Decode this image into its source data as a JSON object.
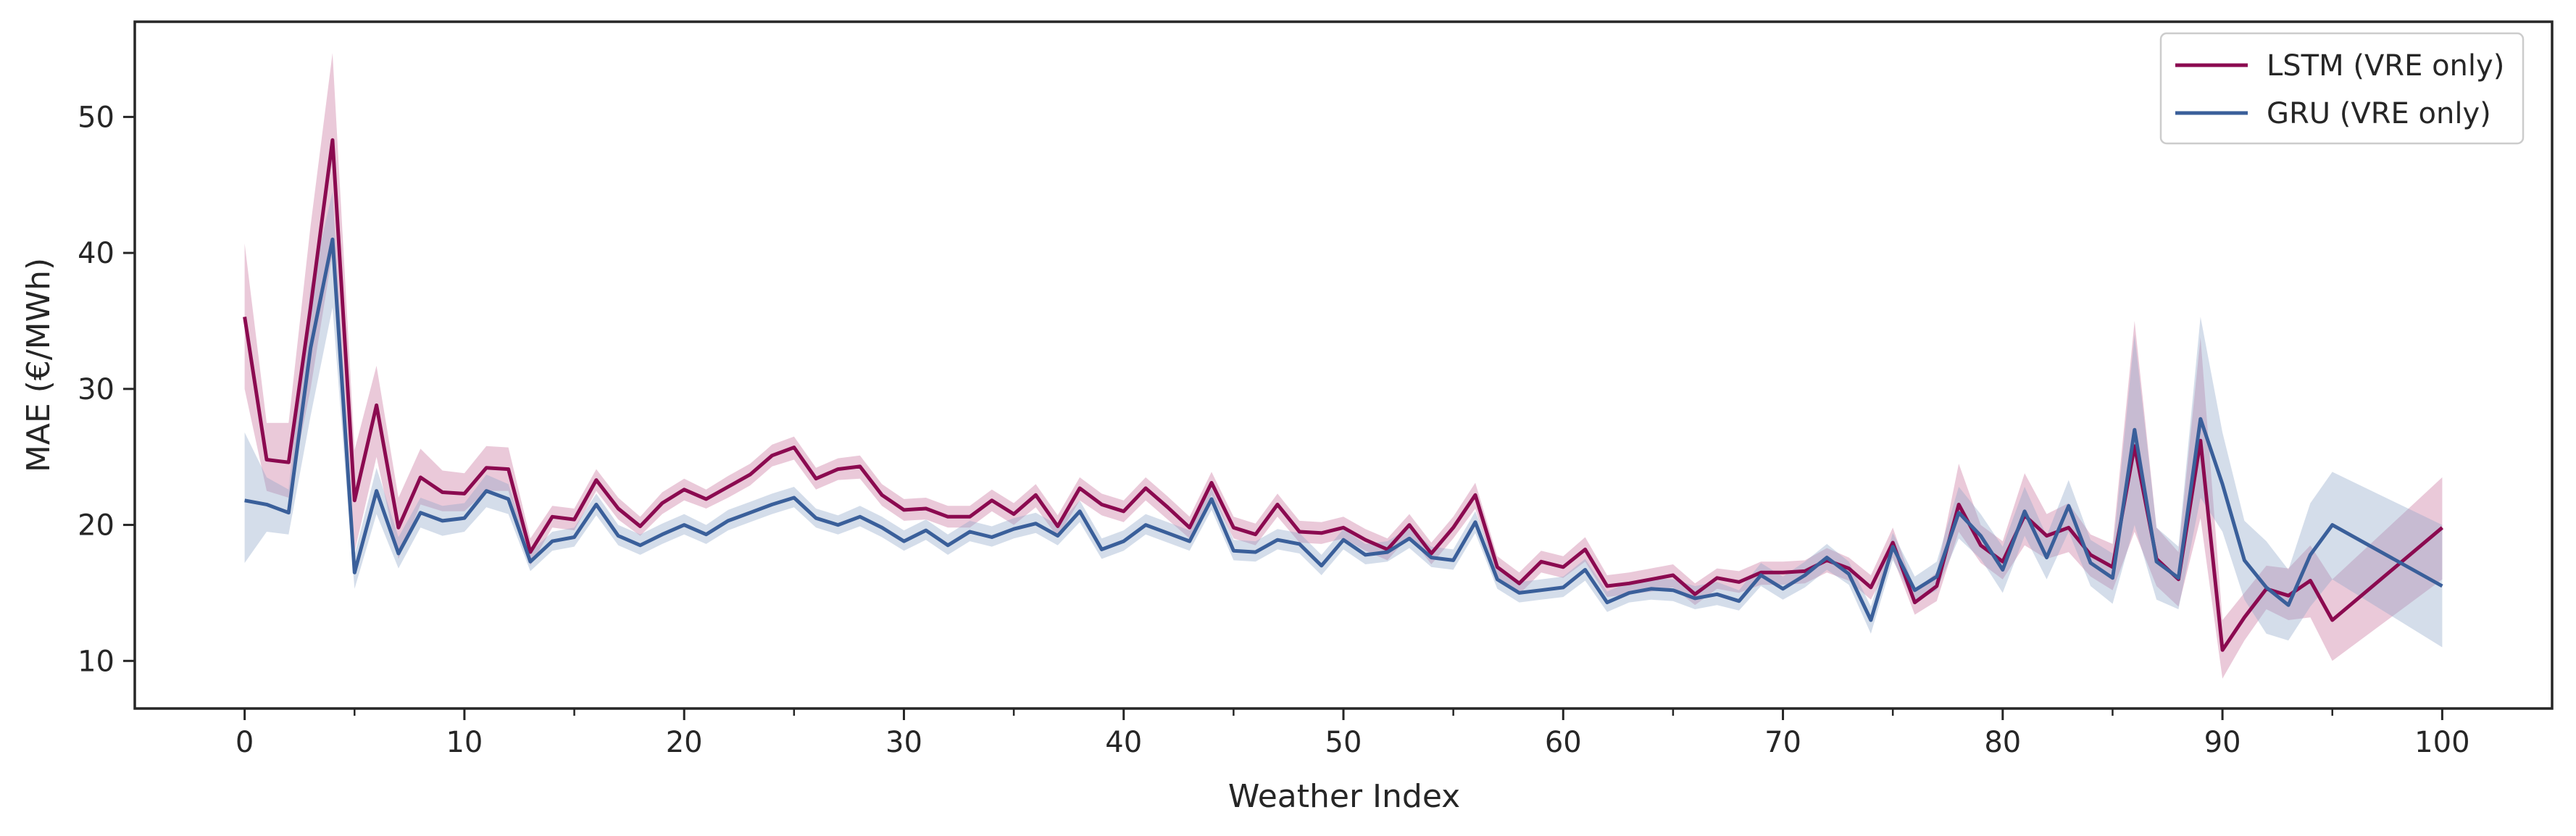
{
  "chart_data": {
    "type": "line",
    "title": "",
    "xlabel": "Weather Index",
    "ylabel": "MAE (€/MWh)",
    "xlim": [
      -5,
      105
    ],
    "ylim": [
      6.5,
      57.0
    ],
    "xticks": [
      "0",
      "10",
      "20",
      "30",
      "40",
      "50",
      "60",
      "70",
      "80",
      "90",
      "100"
    ],
    "yticks": [
      "10",
      "20",
      "30",
      "40",
      "50"
    ],
    "minor_xticks_every": 5,
    "grid": false,
    "legend_position": "top-right",
    "series": [
      {
        "name": "LSTM (VRE only)",
        "color": "#8b0a50",
        "band_color": "#c9719a",
        "x": [
          0,
          1,
          2,
          3,
          4,
          5,
          6,
          7,
          8,
          9,
          10,
          11,
          12,
          13,
          14,
          15,
          16,
          17,
          18,
          19,
          20,
          21,
          22,
          23,
          24,
          25,
          26,
          27,
          28,
          29,
          30,
          31,
          32,
          33,
          34,
          35,
          36,
          37,
          38,
          39,
          40,
          41,
          42,
          43,
          44,
          45,
          46,
          47,
          48,
          49,
          50,
          51,
          52,
          53,
          54,
          55,
          56,
          57,
          58,
          59,
          60,
          61,
          62,
          63,
          64,
          65,
          66,
          67,
          68,
          69,
          70,
          71,
          72,
          73,
          74,
          75,
          76,
          77,
          78,
          79,
          80,
          81,
          82,
          83,
          84,
          85,
          86,
          87,
          88,
          89,
          90,
          91,
          92,
          93,
          94,
          95,
          100
        ],
        "y": [
          35.3,
          24.8,
          24.6,
          36.0,
          48.3,
          21.8,
          28.8,
          19.8,
          23.5,
          22.4,
          22.3,
          24.2,
          24.1,
          18.0,
          20.6,
          20.4,
          23.3,
          21.2,
          19.9,
          21.6,
          22.6,
          21.9,
          22.8,
          23.7,
          25.1,
          25.7,
          23.4,
          24.1,
          24.3,
          22.2,
          21.1,
          21.2,
          20.6,
          20.6,
          21.8,
          20.8,
          22.2,
          19.9,
          22.7,
          21.5,
          21.0,
          22.7,
          21.3,
          19.8,
          23.1,
          19.8,
          19.3,
          21.5,
          19.5,
          19.4,
          19.8,
          18.9,
          18.2,
          20.0,
          17.9,
          19.8,
          22.2,
          16.9,
          15.7,
          17.3,
          16.9,
          18.2,
          15.5,
          15.7,
          16.0,
          16.3,
          14.9,
          16.1,
          15.8,
          16.5,
          16.5,
          16.6,
          17.4,
          16.8,
          15.4,
          18.7,
          14.3,
          15.5,
          21.5,
          18.5,
          17.3,
          20.7,
          19.2,
          19.8,
          17.8,
          16.9,
          25.8,
          17.5,
          16.0,
          26.2,
          10.8,
          13.2,
          15.3,
          14.8,
          15.9,
          13.0,
          19.8
        ],
        "lower": [
          30.0,
          22.5,
          22.0,
          30.0,
          40.0,
          18.0,
          25.0,
          17.5,
          21.5,
          21.0,
          21.0,
          22.5,
          22.5,
          17.0,
          19.8,
          19.6,
          22.5,
          20.4,
          19.2,
          20.8,
          21.8,
          21.2,
          22.0,
          22.9,
          24.3,
          24.8,
          22.6,
          23.3,
          23.4,
          21.4,
          20.3,
          20.4,
          19.8,
          19.8,
          21.0,
          20.0,
          21.3,
          19.1,
          21.8,
          20.7,
          20.2,
          21.8,
          20.4,
          19.0,
          22.2,
          19.0,
          18.5,
          20.6,
          18.7,
          18.6,
          19.0,
          18.1,
          17.4,
          19.2,
          17.1,
          19.0,
          21.2,
          16.1,
          14.9,
          16.5,
          16.1,
          17.3,
          14.7,
          14.9,
          15.1,
          15.4,
          14.1,
          15.3,
          15.0,
          15.6,
          15.6,
          15.7,
          16.5,
          15.9,
          14.5,
          17.6,
          13.4,
          14.4,
          19.5,
          17.2,
          16.0,
          18.5,
          17.5,
          18.0,
          16.2,
          15.2,
          19.5,
          15.5,
          14.0,
          20.5,
          8.7,
          11.5,
          13.8,
          13.0,
          13.2,
          10.0,
          16.0
        ],
        "upper": [
          40.7,
          27.5,
          27.5,
          42.0,
          54.7,
          25.5,
          31.7,
          22.0,
          25.6,
          24.0,
          23.8,
          25.8,
          25.7,
          19.0,
          21.4,
          21.2,
          24.1,
          22.0,
          20.6,
          22.4,
          23.4,
          22.6,
          23.6,
          24.5,
          25.9,
          26.5,
          24.2,
          24.9,
          25.1,
          23.0,
          21.9,
          22.0,
          21.4,
          21.4,
          22.6,
          21.6,
          23.0,
          20.7,
          23.5,
          22.3,
          21.8,
          23.5,
          22.1,
          20.6,
          23.9,
          20.6,
          20.1,
          22.3,
          20.3,
          20.2,
          20.6,
          19.7,
          19.0,
          20.8,
          18.7,
          20.6,
          23.1,
          17.7,
          16.5,
          18.1,
          17.7,
          19.1,
          16.3,
          16.5,
          16.8,
          17.1,
          15.7,
          16.8,
          16.6,
          17.3,
          17.3,
          17.4,
          18.3,
          17.6,
          16.3,
          19.8,
          15.2,
          16.5,
          24.5,
          20.0,
          18.8,
          23.8,
          20.8,
          21.6,
          19.3,
          18.6,
          35.0,
          19.8,
          18.0,
          33.8,
          13.0,
          15.0,
          17.0,
          16.8,
          18.5,
          16.0,
          23.5
        ]
      },
      {
        "name": "GRU (VRE only)",
        "color": "#3a5f9a",
        "band_color": "#8ea5c8",
        "x": [
          0,
          1,
          2,
          3,
          4,
          5,
          6,
          7,
          8,
          9,
          10,
          11,
          12,
          13,
          14,
          15,
          16,
          17,
          18,
          19,
          20,
          21,
          22,
          23,
          24,
          25,
          26,
          27,
          28,
          29,
          30,
          31,
          32,
          33,
          34,
          35,
          36,
          37,
          38,
          39,
          40,
          41,
          42,
          43,
          44,
          45,
          46,
          47,
          48,
          49,
          50,
          51,
          52,
          53,
          54,
          55,
          56,
          57,
          58,
          59,
          60,
          61,
          62,
          63,
          64,
          65,
          66,
          67,
          68,
          69,
          70,
          71,
          72,
          73,
          74,
          75,
          76,
          77,
          78,
          79,
          80,
          81,
          82,
          83,
          84,
          85,
          86,
          87,
          88,
          89,
          90,
          91,
          92,
          93,
          94,
          95,
          100
        ],
        "y": [
          21.8,
          21.5,
          20.9,
          33.0,
          41.0,
          16.5,
          22.5,
          17.9,
          20.9,
          20.3,
          20.5,
          22.5,
          21.9,
          17.3,
          18.8,
          19.1,
          21.5,
          19.2,
          18.5,
          19.3,
          20.0,
          19.3,
          20.3,
          20.9,
          21.5,
          22.0,
          20.5,
          20.0,
          20.6,
          19.8,
          18.8,
          19.6,
          18.5,
          19.5,
          19.1,
          19.7,
          20.1,
          19.2,
          21.0,
          18.2,
          18.8,
          20.0,
          19.4,
          18.8,
          21.9,
          18.1,
          18.0,
          18.9,
          18.6,
          17.0,
          18.9,
          17.8,
          18.0,
          19.0,
          17.6,
          17.4,
          20.2,
          16.0,
          15.0,
          15.2,
          15.4,
          16.7,
          14.3,
          15.0,
          15.3,
          15.2,
          14.6,
          14.9,
          14.4,
          16.3,
          15.3,
          16.3,
          17.6,
          16.4,
          13.0,
          18.4,
          15.2,
          16.2,
          20.9,
          19.2,
          16.7,
          21.0,
          17.6,
          21.4,
          17.2,
          16.1,
          27.0,
          17.3,
          16.1,
          27.8,
          23.0,
          17.4,
          15.4,
          14.1,
          17.8,
          20.0,
          15.5
        ],
        "lower": [
          17.2,
          19.5,
          19.3,
          28.0,
          36.0,
          15.3,
          20.8,
          16.8,
          19.8,
          19.2,
          19.5,
          21.3,
          20.8,
          16.6,
          18.1,
          18.4,
          20.7,
          18.5,
          17.8,
          18.6,
          19.3,
          18.6,
          19.6,
          20.2,
          20.8,
          21.3,
          19.8,
          19.3,
          19.9,
          19.1,
          18.1,
          18.9,
          17.8,
          18.8,
          18.4,
          19.0,
          19.4,
          18.5,
          20.2,
          17.5,
          18.1,
          19.3,
          18.7,
          18.1,
          21.1,
          17.4,
          17.3,
          18.2,
          17.9,
          16.3,
          18.2,
          17.1,
          17.3,
          18.3,
          16.9,
          16.7,
          19.4,
          15.3,
          14.3,
          14.5,
          14.7,
          15.9,
          13.6,
          14.3,
          14.5,
          14.4,
          13.8,
          14.1,
          13.7,
          15.5,
          14.5,
          15.4,
          16.7,
          15.6,
          12.0,
          17.4,
          14.3,
          15.2,
          19.0,
          17.5,
          15.0,
          19.2,
          16.0,
          19.5,
          15.5,
          14.2,
          20.0,
          14.5,
          13.8,
          22.0,
          19.5,
          14.5,
          12.0,
          11.5,
          14.0,
          16.0,
          11.0
        ],
        "upper": [
          26.8,
          23.5,
          22.6,
          37.5,
          44.5,
          17.8,
          24.2,
          19.1,
          22.0,
          21.4,
          21.6,
          23.7,
          23.0,
          18.0,
          19.5,
          19.8,
          22.3,
          20.0,
          19.3,
          20.1,
          20.8,
          20.0,
          21.1,
          21.7,
          22.3,
          22.8,
          21.2,
          20.7,
          21.4,
          20.6,
          19.6,
          20.4,
          19.3,
          20.3,
          19.9,
          20.5,
          20.9,
          20.0,
          21.8,
          19.0,
          19.6,
          20.8,
          20.2,
          19.6,
          22.7,
          18.9,
          18.8,
          19.7,
          19.4,
          17.8,
          19.7,
          18.6,
          18.8,
          19.8,
          18.4,
          18.2,
          21.0,
          16.8,
          15.8,
          16.0,
          16.2,
          17.5,
          15.1,
          15.8,
          16.1,
          16.0,
          15.5,
          15.8,
          15.2,
          17.2,
          16.2,
          17.3,
          18.6,
          17.3,
          14.0,
          19.4,
          16.2,
          17.3,
          22.8,
          20.8,
          18.4,
          22.8,
          19.2,
          23.3,
          18.9,
          17.9,
          34.0,
          19.8,
          18.4,
          35.3,
          26.8,
          20.3,
          18.8,
          16.7,
          21.6,
          23.9,
          20.0
        ]
      }
    ]
  }
}
